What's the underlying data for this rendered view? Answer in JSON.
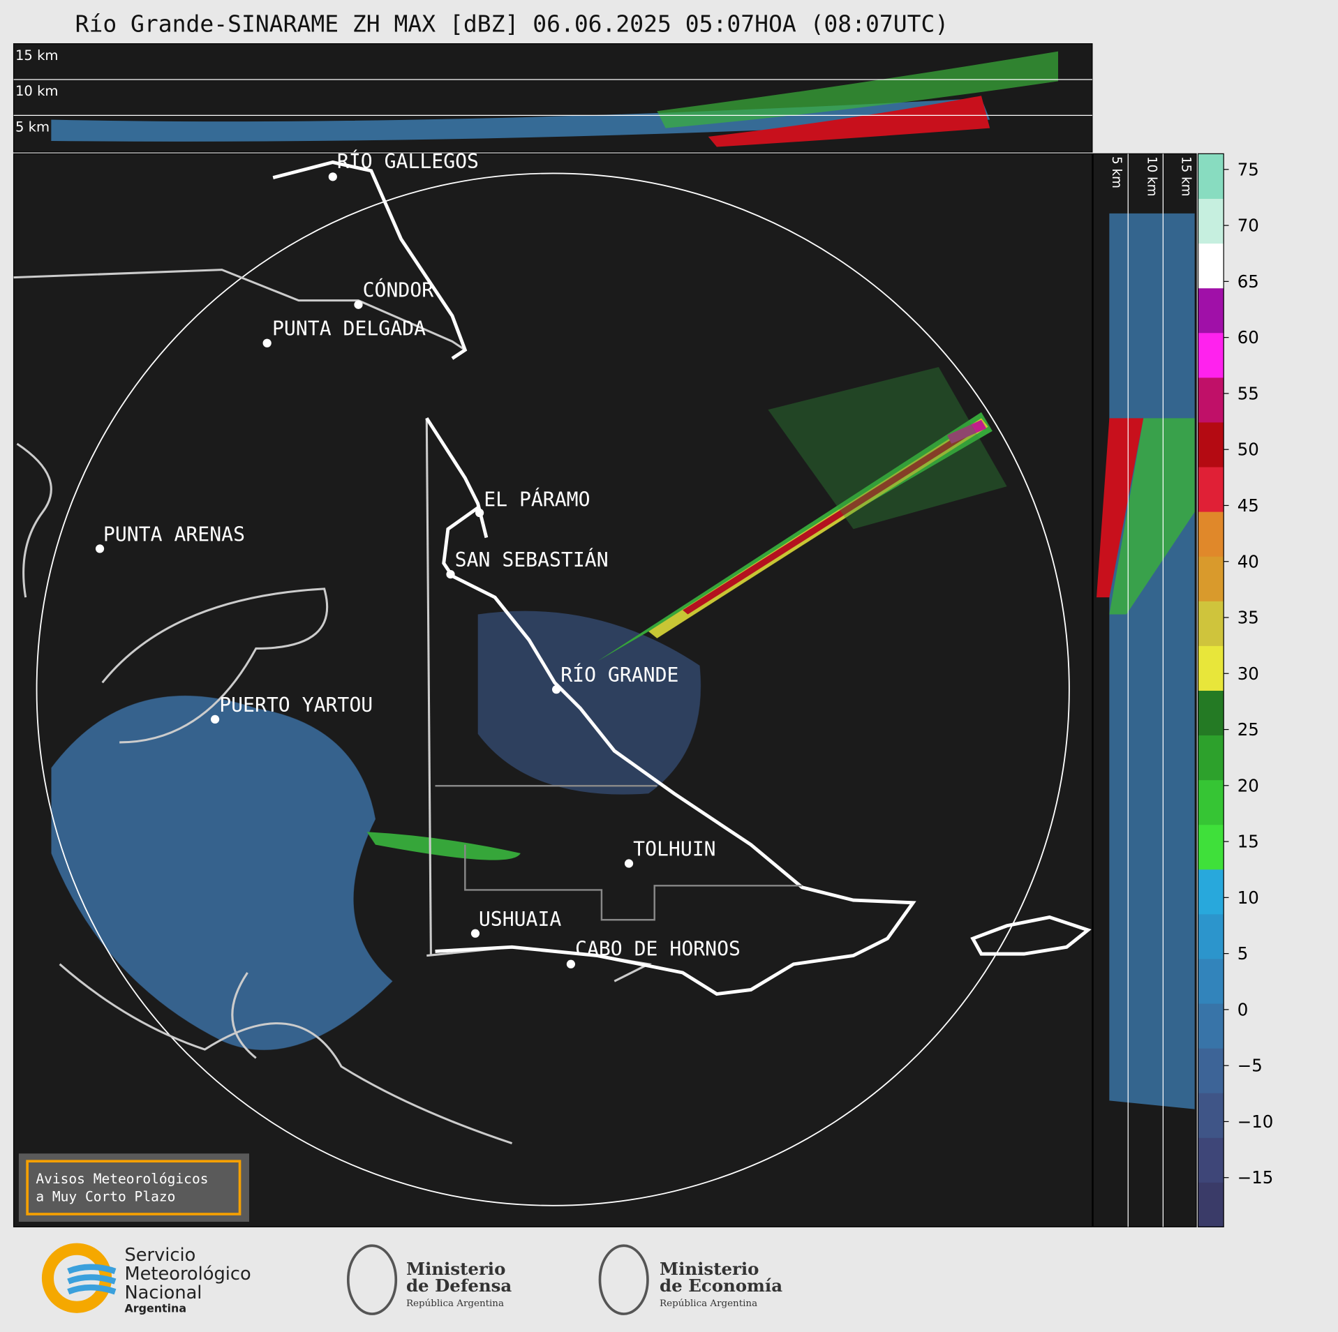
{
  "title": "Río Grande-SINARAME ZH MAX [dBZ] 06.06.2025 05:07HOA (08:07UTC)",
  "top_panel": {
    "height_labels": [
      "15 km",
      "10 km",
      "5 km"
    ]
  },
  "side_panel": {
    "height_labels": [
      "5 km",
      "10 km",
      "15 km"
    ]
  },
  "map": {
    "cities": [
      "RÍO GALLEGOS",
      "CÓNDOR",
      "PUNTA DELGADA",
      "PUNTA ARENAS",
      "EL PÁRAMO",
      "SAN SEBASTIÁN",
      "RÍO GRANDE",
      "PUERTO YARTOU",
      "TOLHUIN",
      "USHUAIA",
      "CABO DE HORNOS"
    ]
  },
  "colorbar": {
    "lim": [
      -19.4,
      76.4
    ],
    "ticks": [
      {
        "value": -15,
        "label": "−15"
      },
      {
        "value": -10,
        "label": "−10"
      },
      {
        "value": -5,
        "label": "−5"
      },
      0,
      5,
      10,
      15,
      20,
      25,
      30,
      35,
      40,
      45,
      50,
      55,
      60,
      65,
      70,
      75
    ],
    "colors": [
      "#3a3b68",
      "#3e4678",
      "#3f5587",
      "#3d6497",
      "#3874a8",
      "#3284bb",
      "#2c95cc",
      "#28a8dc",
      "#3fe03a",
      "#36c534",
      "#2da12c",
      "#247a24",
      "#e8e63a",
      "#cfc43c",
      "#d99a2c",
      "#e0882a",
      "#e02036",
      "#b40a12",
      "#c01068",
      "#ff22ee",
      "#a010a8",
      "#ffffff",
      "#c6efdf",
      "#88dcc0"
    ]
  },
  "notice": [
    "Avisos Meteorológicos",
    "a Muy Corto Plazo"
  ],
  "logos": {
    "smn": [
      "Servicio",
      "Meteorológico",
      "Nacional",
      "Argentina"
    ],
    "defensa": [
      "Ministerio",
      "de Defensa",
      "República Argentina"
    ],
    "economia": [
      "Ministerio",
      "de Economía",
      "República Argentina"
    ]
  }
}
